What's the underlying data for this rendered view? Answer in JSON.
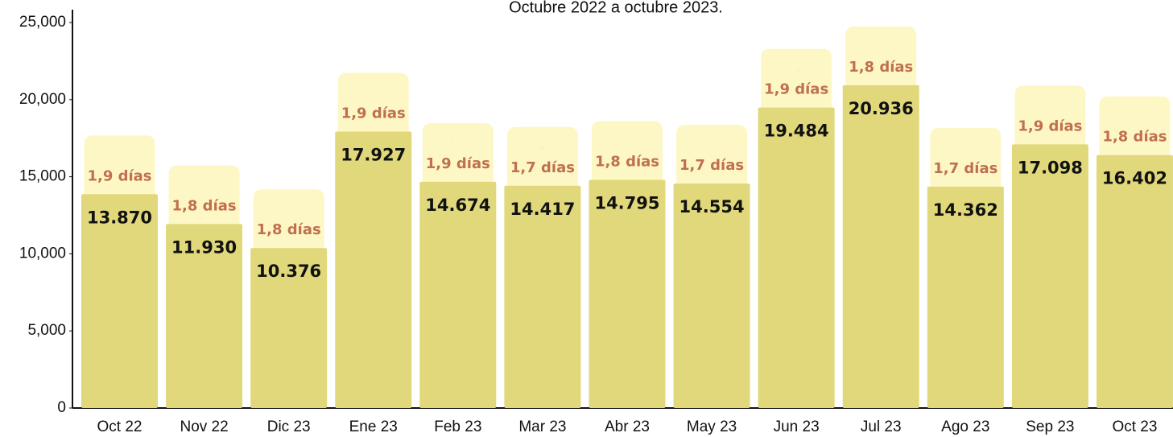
{
  "chart_data": {
    "type": "bar",
    "title": "Octubre 2022 a octubre 2023.",
    "categories": [
      "Oct 22",
      "Nov 22",
      "Dic 23",
      "Ene 23",
      "Feb 23",
      "Mar 23",
      "Abr 23",
      "May 23",
      "Jun 23",
      "Jul 23",
      "Ago 23",
      "Sep 23",
      "Oct 23"
    ],
    "values": [
      13870,
      11930,
      10376,
      17927,
      14674,
      14417,
      14795,
      14554,
      19484,
      20936,
      14362,
      17098,
      16402
    ],
    "value_labels": [
      "13.870",
      "11.930",
      "10.376",
      "17.927",
      "14.674",
      "14.417",
      "14.795",
      "14.554",
      "19.484",
      "20.936",
      "14.362",
      "17.098",
      "16.402"
    ],
    "annotations": [
      "1,9 días",
      "1,8 días",
      "1,8 días",
      "1,9 días",
      "1,9 días",
      "1,7 días",
      "1,8 días",
      "1,7 días",
      "1,9 días",
      "1,8 días",
      "1,7 días",
      "1,9 días",
      "1,8 días"
    ],
    "color": "#e0d87a",
    "ylim": [
      0,
      25000
    ],
    "yticks": [
      0,
      {
        "value": 5000,
        "label": "5,000"
      },
      {
        "value": 10000,
        "label": "10,000"
      },
      {
        "value": 15000,
        "label": "15,000"
      },
      {
        "value": 20000,
        "label": "20,000"
      },
      {
        "value": 25000,
        "label": "25,000"
      }
    ],
    "grid": false
  }
}
